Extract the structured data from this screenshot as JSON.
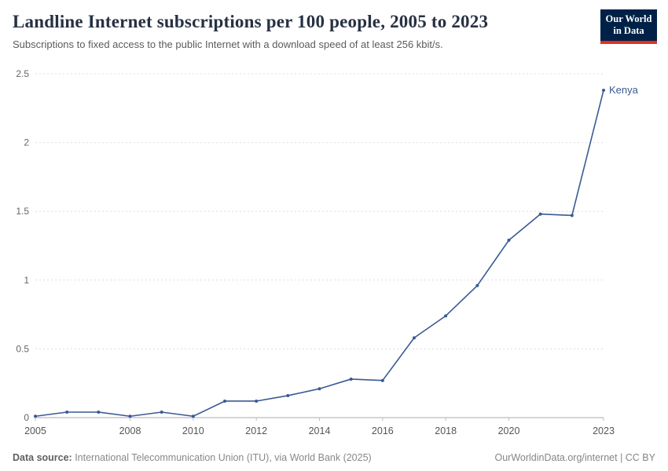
{
  "header": {
    "title": "Landline Internet subscriptions per 100 people, 2005 to 2023",
    "subtitle": "Subscriptions to fixed access to the public Internet with a download speed of at least 256 kbit/s.",
    "logo": {
      "line1": "Our World",
      "line2": "in Data",
      "bg_color": "#002147",
      "accent_color": "#e0301e"
    }
  },
  "chart_data": {
    "type": "line",
    "title": "Landline Internet subscriptions per 100 people, 2005 to 2023",
    "x": [
      2005,
      2006,
      2007,
      2008,
      2009,
      2010,
      2011,
      2012,
      2013,
      2014,
      2015,
      2016,
      2017,
      2018,
      2019,
      2020,
      2021,
      2022,
      2023
    ],
    "series": [
      {
        "name": "Kenya",
        "color": "#3a5a92",
        "values": [
          0.01,
          0.04,
          0.04,
          0.01,
          0.04,
          0.01,
          0.12,
          0.12,
          0.16,
          0.21,
          0.28,
          0.27,
          0.58,
          0.74,
          0.96,
          1.29,
          1.48,
          1.47,
          2.38
        ]
      }
    ],
    "xlabel": "",
    "ylabel": "",
    "ylim": [
      0,
      2.5
    ],
    "yticks": [
      0,
      0.5,
      1,
      1.5,
      2,
      2.5
    ],
    "xticks": [
      2005,
      2008,
      2010,
      2012,
      2014,
      2016,
      2018,
      2020,
      2023
    ],
    "grid": "horizontal-dashed",
    "legend_position": "end-of-line-label",
    "grid_color": "#dcdce4",
    "axis_color": "#a8a8b4",
    "tick_label_color": "#666666"
  },
  "footer": {
    "datasource_label": "Data source:",
    "datasource_text": " International Telecommunication Union (ITU), via World Bank (2025)",
    "link": "OurWorldinData.org/internet | CC BY"
  }
}
